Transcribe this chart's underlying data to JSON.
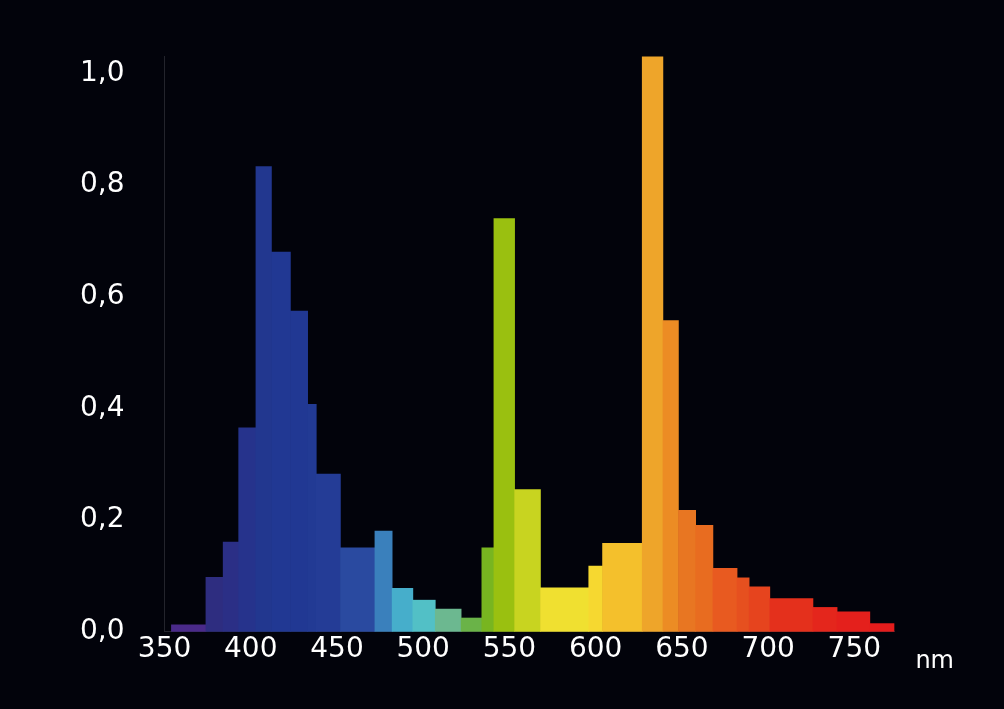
{
  "chart_data": {
    "type": "histogram",
    "xlabel": "nm",
    "bins": [
      354,
      374,
      384,
      393,
      403,
      412,
      423,
      433,
      438,
      452,
      472,
      482,
      494,
      507,
      522,
      534,
      541,
      553,
      568,
      596,
      604,
      627,
      639,
      648,
      658,
      668,
      682,
      689,
      701,
      726,
      740,
      759,
      773
    ],
    "values": [
      0.012,
      0.097,
      0.16,
      0.365,
      0.833,
      0.68,
      0.574,
      0.407,
      0.282,
      0.15,
      0.18,
      0.077,
      0.056,
      0.04,
      0.024,
      0.15,
      0.74,
      0.254,
      0.078,
      0.117,
      0.158,
      1.03,
      0.557,
      0.217,
      0.19,
      0.113,
      0.096,
      0.08,
      0.059,
      0.043,
      0.035,
      0.014
    ],
    "colors": [
      "#4a2a8a",
      "#2e2d80",
      "#2b2f86",
      "#26338c",
      "#22378f",
      "#213893",
      "#213893",
      "#223a94",
      "#243c96",
      "#2a4aa0",
      "#3a80bc",
      "#46aecb",
      "#52c0c6",
      "#6cb890",
      "#6ab348",
      "#78b520",
      "#9ac010",
      "#c8d420",
      "#f0e030",
      "#f6d830",
      "#f4c02c",
      "#eea52a",
      "#ec8c24",
      "#e87622",
      "#e86c20",
      "#e85a20",
      "#e6501f",
      "#e6441e",
      "#e4301c",
      "#e4261c",
      "#e4201c",
      "#e41c1c"
    ],
    "xlim": [
      350,
      773
    ],
    "ylim": [
      0,
      1.03
    ],
    "xticks": [
      350,
      400,
      450,
      500,
      550,
      600,
      650,
      700,
      750
    ],
    "yticks": [
      {
        "value": 0,
        "label": "0,0"
      },
      {
        "value": 0.2,
        "label": "0,2"
      },
      {
        "value": 0.4,
        "label": "0,4"
      },
      {
        "value": 0.6,
        "label": "0,6"
      },
      {
        "value": 0.8,
        "label": "0,8"
      },
      {
        "value": 1,
        "label": "1,0"
      }
    ],
    "grid": false,
    "legend": false
  }
}
